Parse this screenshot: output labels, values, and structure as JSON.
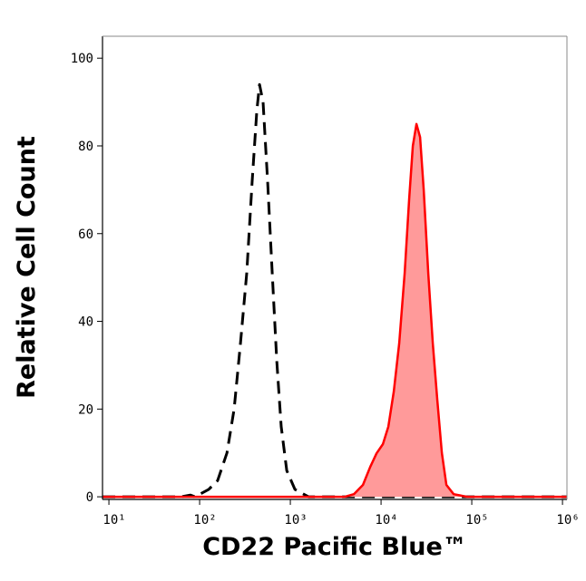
{
  "chart_data": {
    "type": "line",
    "xlabel": "CD22 Pacific Blue™",
    "ylabel": "Relative Cell Count",
    "xscale": "log",
    "xlim": [
      8.5,
      1120000
    ],
    "ylim": [
      -0.6,
      105
    ],
    "xticks": [
      {
        "value": 10,
        "label": "10¹"
      },
      {
        "value": 100,
        "label": "10²"
      },
      {
        "value": 1000,
        "label": "10³"
      },
      {
        "value": 10000,
        "label": "10⁴"
      },
      {
        "value": 100000,
        "label": "10⁵"
      },
      {
        "value": 1000000,
        "label": "10⁶"
      }
    ],
    "yticks": [
      0,
      20,
      40,
      60,
      80,
      100
    ],
    "series": [
      {
        "color": "#000000",
        "linestyle": "dashed",
        "fill": false,
        "x": [
          8.5,
          63,
          79,
          89,
          126,
          158,
          200,
          240,
          282,
          331,
          380,
          427,
          457,
          501,
          562,
          631,
          708,
          794,
          912,
          1122,
          1585,
          1120000
        ],
        "values": [
          0,
          0,
          0.4,
          0,
          1.7,
          3.7,
          10,
          20,
          35,
          51,
          72,
          88,
          94,
          90,
          72,
          51,
          31,
          16,
          6,
          1.7,
          0,
          0
        ]
      },
      {
        "color": "#ff0000",
        "linestyle": "solid",
        "fill": true,
        "fill_color": "#ff9a9a",
        "x": [
          8.5,
          3981,
          5012,
          6310,
          7586,
          8913,
          10471,
          12023,
          13804,
          15849,
          18197,
          20417,
          22387,
          24547,
          26915,
          29512,
          33113,
          37154,
          41687,
          46774,
          52481,
          63096,
          89125,
          1120000
        ],
        "values": [
          0,
          0,
          0.6,
          2.7,
          6.8,
          9.9,
          12,
          16,
          24,
          35,
          51,
          68,
          80,
          85,
          82,
          70,
          51,
          35,
          22,
          10,
          2.7,
          0.6,
          0,
          0
        ]
      }
    ]
  }
}
